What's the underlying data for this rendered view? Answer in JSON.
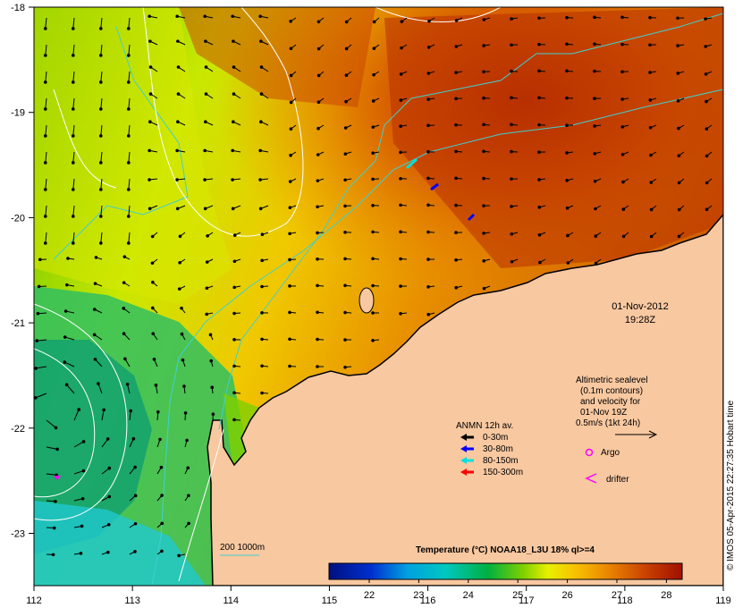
{
  "map": {
    "lon_ticks": [
      "112",
      "113",
      "114",
      "115",
      "116",
      "117",
      "118",
      "119"
    ],
    "lat_ticks": [
      "-18",
      "-19",
      "-20",
      "-21",
      "-22",
      "-23"
    ],
    "colors": {
      "land": "#f8c8a0",
      "coast": "#000000",
      "bathy": "#40d0d0",
      "contour": "#ffffff"
    }
  },
  "timestamp": {
    "date": "01-Nov-2012",
    "time": "19:28Z"
  },
  "altimetry_note": {
    "lines": [
      "Altimetric sealevel",
      "(0.1m contours)",
      "and velocity for",
      "01-Nov 19Z",
      "0.5m/s (1kt 24h)"
    ]
  },
  "anmn_legend": {
    "title": "ANMN 12h av.",
    "items": [
      {
        "label": "0-30m",
        "color": "#000000"
      },
      {
        "label": "30-80m",
        "color": "#0000ff"
      },
      {
        "label": "80-150m",
        "color": "#00e0e0"
      },
      {
        "label": "150-300m",
        "color": "#ff0000"
      }
    ]
  },
  "markers": {
    "argo": "Argo",
    "drifter": "drifter",
    "argo_color": "#ff00ff",
    "drifter_color": "#ff00ff"
  },
  "bathy_legend": {
    "label": "200  1000m"
  },
  "colorbar": {
    "title": "Temperature (°C) NOAA18_L3U 18% ql>=4",
    "ticks": [
      "22",
      "23",
      "24",
      "25",
      "26",
      "27",
      "28"
    ]
  },
  "credit": "© IMOS 05-Apr-2015 22:27:35 Hobart time"
}
